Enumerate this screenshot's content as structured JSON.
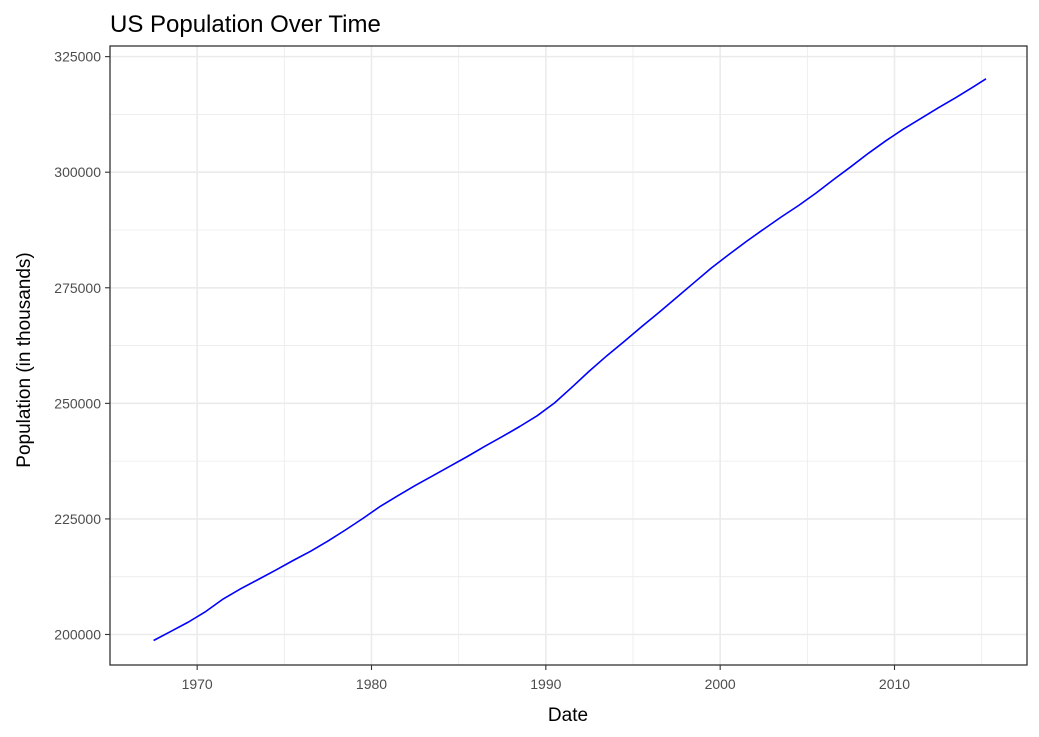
{
  "chart_data": {
    "type": "line",
    "title": "US Population Over Time",
    "xlabel": "Date",
    "ylabel": "Population (in thousands)",
    "xlim": [
      1965.0,
      2017.6
    ],
    "ylim": [
      193400,
      327300
    ],
    "x_ticks": [
      1970,
      1980,
      1990,
      2000,
      2010
    ],
    "x_tick_labels": [
      "1970",
      "1980",
      "1990",
      "2000",
      "2010"
    ],
    "y_ticks": [
      200000,
      225000,
      250000,
      275000,
      300000,
      325000
    ],
    "y_tick_labels": [
      "200000",
      "225000",
      "250000",
      "275000",
      "300000",
      "325000"
    ],
    "grid": true,
    "legend": "none",
    "colors": {
      "line": "#0000ff",
      "grid": "#ebebeb",
      "panel_border": "#333333",
      "background": "#ffffff"
    },
    "series": [
      {
        "x": [
          "1967-07",
          "1968-07",
          "1969-07",
          "1970-07",
          "1971-07",
          "1972-07",
          "1973-07",
          "1974-07",
          "1975-07",
          "1976-07",
          "1977-07",
          "1978-07",
          "1979-07",
          "1980-07",
          "1981-07",
          "1982-07",
          "1983-07",
          "1984-07",
          "1985-07",
          "1986-07",
          "1987-07",
          "1988-07",
          "1989-07",
          "1990-07",
          "1991-07",
          "1992-07",
          "1993-07",
          "1994-07",
          "1995-07",
          "1996-07",
          "1997-07",
          "1998-07",
          "1999-07",
          "2000-07",
          "2001-07",
          "2002-07",
          "2003-07",
          "2004-07",
          "2005-07",
          "2006-07",
          "2007-07",
          "2008-07",
          "2009-07",
          "2010-07",
          "2011-07",
          "2012-07",
          "2013-07",
          "2014-07",
          "2015-04"
        ],
        "y": [
          198700,
          200700,
          202700,
          205000,
          207700,
          209900,
          211900,
          213900,
          216000,
          218000,
          220200,
          222600,
          225100,
          227700,
          230000,
          232200,
          234300,
          236400,
          238500,
          240700,
          242800,
          245000,
          247300,
          250100,
          253500,
          257000,
          260300,
          263400,
          266600,
          269700,
          272900,
          276100,
          279300,
          282200,
          285000,
          287700,
          290300,
          292800,
          295500,
          298400,
          301200,
          304100,
          306800,
          309300,
          311600,
          313900,
          316100,
          318400,
          320200
        ]
      }
    ]
  }
}
